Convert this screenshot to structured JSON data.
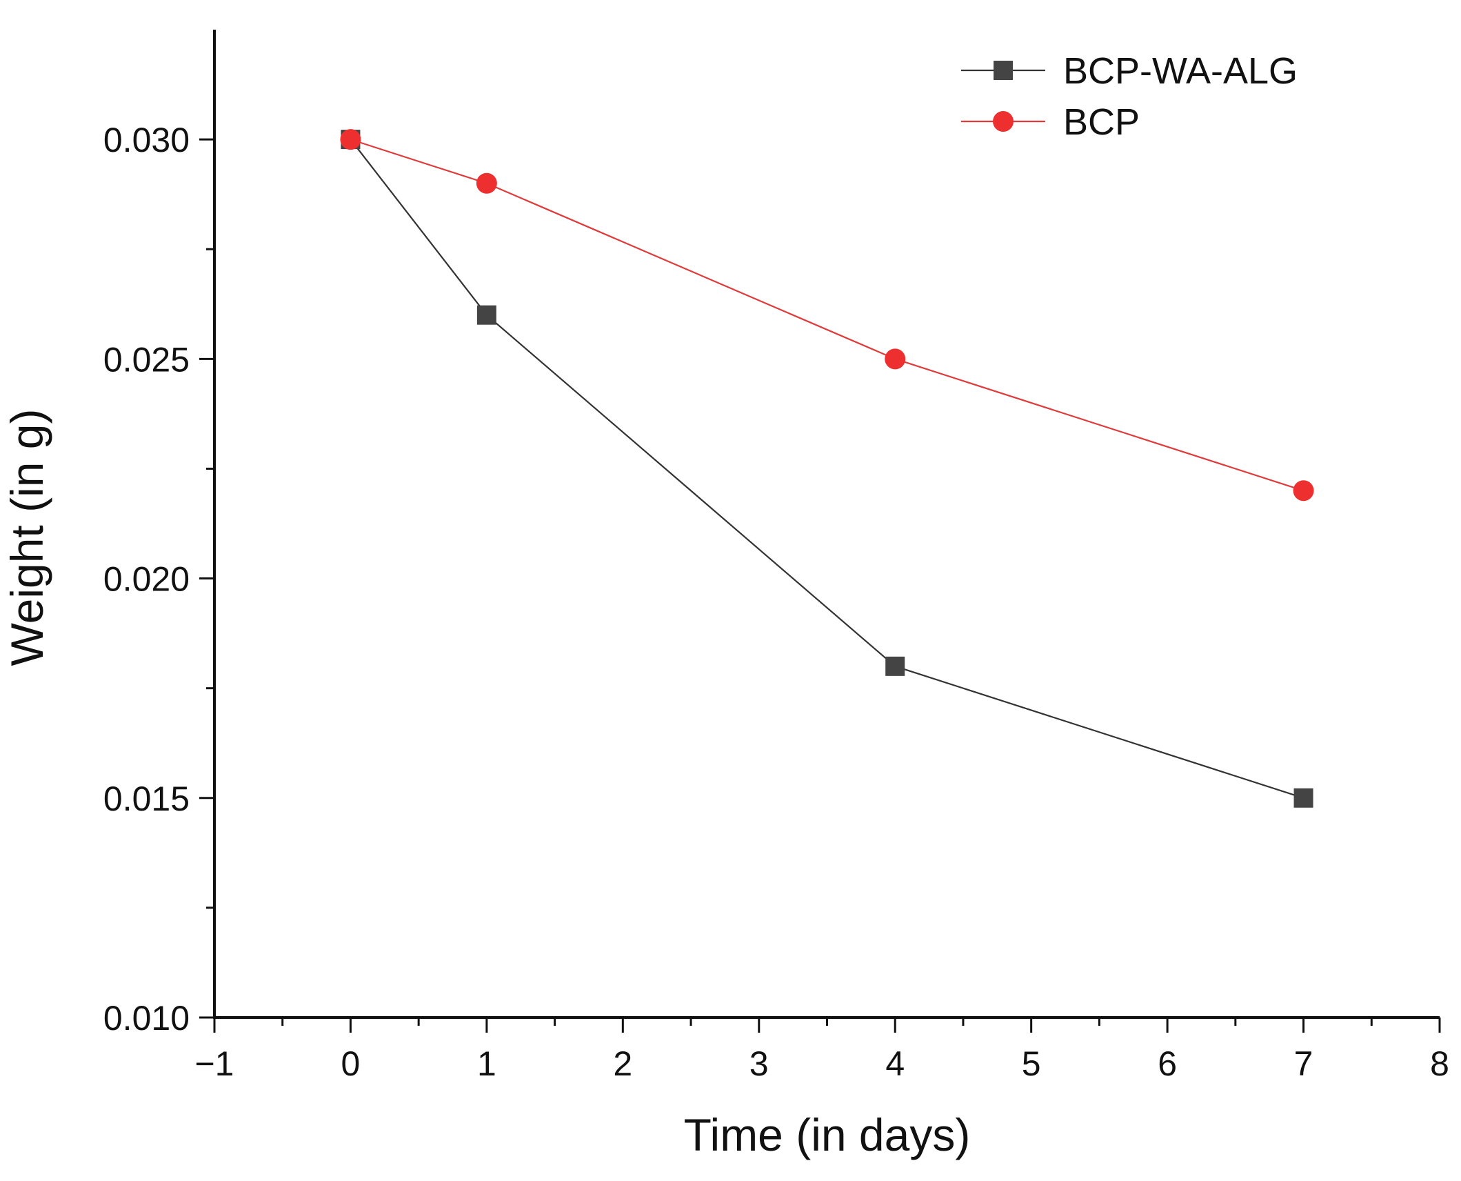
{
  "chart_data": {
    "type": "line",
    "title": "",
    "xlabel": "Time (in days)",
    "ylabel": "Weight (in g)",
    "xlim": [
      -1,
      8
    ],
    "ylim": [
      0.01,
      0.0325
    ],
    "x_ticks": [
      -1,
      0,
      1,
      2,
      3,
      4,
      5,
      6,
      7,
      8
    ],
    "x_tick_labels": [
      "−1",
      "0",
      "1",
      "2",
      "3",
      "4",
      "5",
      "6",
      "7",
      "8"
    ],
    "y_ticks": [
      0.01,
      0.015,
      0.02,
      0.025,
      0.03
    ],
    "y_tick_labels": [
      "0.010",
      "0.015",
      "0.020",
      "0.025",
      "0.030"
    ],
    "grid": false,
    "legend_position": "top-right",
    "series": [
      {
        "name": "BCP-WA-ALG",
        "marker": "square",
        "color": "#444444",
        "line_color": "#333333",
        "x": [
          0,
          1,
          4,
          7
        ],
        "y": [
          0.03,
          0.026,
          0.018,
          0.015
        ]
      },
      {
        "name": "BCP",
        "marker": "circle",
        "color": "#ee2f2f",
        "line_color": "#e03a3a",
        "x": [
          0,
          1,
          4,
          7
        ],
        "y": [
          0.03,
          0.029,
          0.025,
          0.022
        ]
      }
    ]
  }
}
